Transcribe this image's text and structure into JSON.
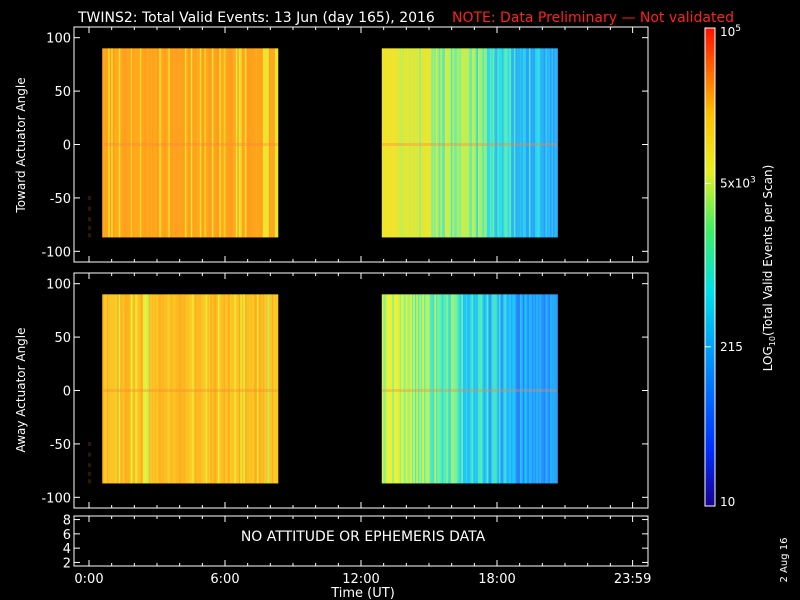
{
  "title": {
    "main": "TWINS2: Total Valid Events: 13 Jun (day 165), 2016",
    "note": "NOTE: Data Preliminary — Not validated",
    "note_color": "#ff2020"
  },
  "side_date": "2 Aug 16",
  "colorbar": {
    "label": "LOG10(Total Valid Events per Scan)",
    "label_main": "LOG",
    "label_sub": "10",
    "label_rest": "(Total Valid  Events per Scan)",
    "ticks": [
      {
        "value": 100000,
        "base": "10",
        "exp": "5"
      },
      {
        "value": 5000,
        "base": "5x10",
        "exp": "3"
      },
      {
        "value": 215,
        "base": "215",
        "exp": ""
      },
      {
        "value": 10,
        "base": "10",
        "exp": ""
      }
    ],
    "scale": "log",
    "range": [
      10,
      100000
    ]
  },
  "chart_data": [
    {
      "type": "heatmap",
      "ylabel": "Toward Actuator Angle",
      "ylim": [
        -110,
        110
      ],
      "yticks": [
        "100",
        "50",
        "0",
        "-50",
        "-100"
      ],
      "ytick_values": [
        100,
        50,
        0,
        -50,
        -100
      ],
      "x_range_hours": [
        0,
        24
      ],
      "data_blocks": [
        {
          "start": "00:35",
          "end": "08:20",
          "angle_range": [
            -87,
            90
          ],
          "approx_events_per_scan": [
            8000,
            60000
          ]
        },
        {
          "start": "12:55",
          "end": "20:40",
          "angle_range": [
            -87,
            90
          ],
          "approx_events_per_scan": [
            150,
            6000
          ]
        }
      ],
      "gradient_stops": [
        "#ff9a1e",
        "#ffb01c",
        "#f3e32a",
        "#b7f25a",
        "#2ee6e6",
        "#2a9bff",
        "#3ad6f0"
      ]
    },
    {
      "type": "heatmap",
      "ylabel": "Away Actuator Angle",
      "ylim": [
        -110,
        110
      ],
      "yticks": [
        "100",
        "50",
        "0",
        "-50",
        "-100"
      ],
      "ytick_values": [
        100,
        50,
        0,
        -50,
        -100
      ],
      "x_range_hours": [
        0,
        24
      ],
      "data_blocks": [
        {
          "start": "00:35",
          "end": "08:20",
          "angle_range": [
            -87,
            90
          ],
          "approx_events_per_scan": [
            5000,
            40000
          ]
        },
        {
          "start": "12:55",
          "end": "20:40",
          "angle_range": [
            -87,
            90
          ],
          "approx_events_per_scan": [
            150,
            5000
          ]
        }
      ],
      "gradient_stops": [
        "#ffa51c",
        "#f8d82a",
        "#e9f23a",
        "#5bf2b0",
        "#1ec5ff",
        "#2a7dff",
        "#27c9f2"
      ]
    },
    {
      "type": "line",
      "ylim": [
        1.5,
        8.5
      ],
      "yticks": [
        "8",
        "6",
        "4",
        "2"
      ],
      "ytick_values": [
        8,
        6,
        4,
        2
      ],
      "message": "NO ATTITUDE OR EPHEMERIS DATA",
      "xlabel": "Time (UT)",
      "xticks": [
        "0:00",
        "6:00",
        "12:00",
        "18:00",
        "23:59"
      ],
      "xtick_values": [
        0,
        6,
        12,
        18,
        23.983
      ]
    }
  ]
}
